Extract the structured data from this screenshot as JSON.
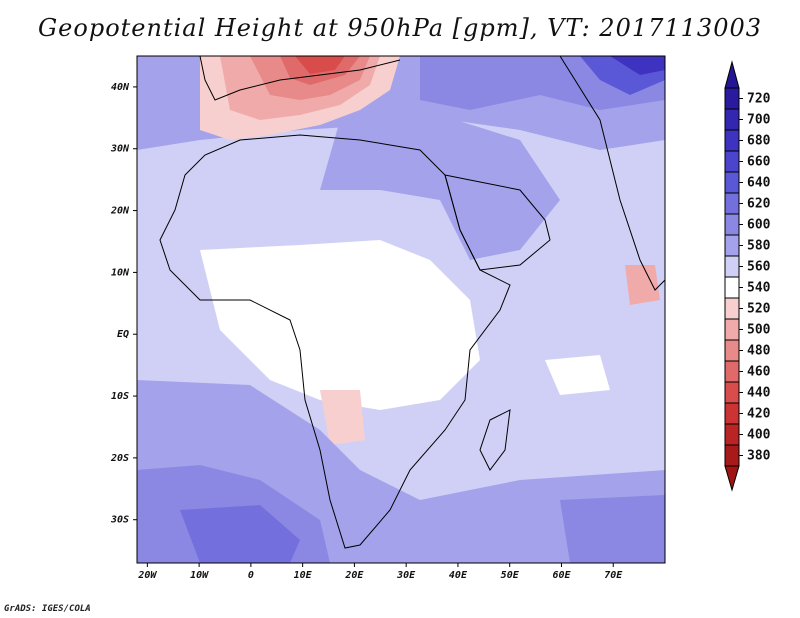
{
  "title": "Geopotential Height at 950hPa [gpm], VT: 2017113003",
  "credit": "GrADS: IGES/COLA",
  "map": {
    "variable": "Geopotential Height",
    "level": "950hPa",
    "units": "gpm",
    "valid_time": "2017113003",
    "lon_range": [
      -22,
      80
    ],
    "lat_range": [
      -37,
      45
    ],
    "x_ticks": [
      {
        "lon": -20,
        "label": "20W"
      },
      {
        "lon": -10,
        "label": "10W"
      },
      {
        "lon": 0,
        "label": "0"
      },
      {
        "lon": 10,
        "label": "10E"
      },
      {
        "lon": 20,
        "label": "20E"
      },
      {
        "lon": 30,
        "label": "30E"
      },
      {
        "lon": 40,
        "label": "40E"
      },
      {
        "lon": 50,
        "label": "50E"
      },
      {
        "lon": 60,
        "label": "60E"
      },
      {
        "lon": 70,
        "label": "70E"
      }
    ],
    "y_ticks": [
      {
        "lat": 40,
        "label": "40N"
      },
      {
        "lat": 30,
        "label": "30N"
      },
      {
        "lat": 20,
        "label": "20N"
      },
      {
        "lat": 10,
        "label": "10N"
      },
      {
        "lat": 0,
        "label": "EQ"
      },
      {
        "lat": -10,
        "label": "10S"
      },
      {
        "lat": -20,
        "label": "20S"
      },
      {
        "lat": -30,
        "label": "30S"
      }
    ]
  },
  "colorbar": {
    "levels": [
      {
        "value": 720,
        "label": "720",
        "color": "#2a1aa0"
      },
      {
        "value": 700,
        "label": "700",
        "color": "#3326b0"
      },
      {
        "value": 680,
        "label": "680",
        "color": "#3e33c0"
      },
      {
        "value": 660,
        "label": "660",
        "color": "#4a45cc"
      },
      {
        "value": 640,
        "label": "640",
        "color": "#5a58d6"
      },
      {
        "value": 620,
        "label": "620",
        "color": "#7370dd"
      },
      {
        "value": 600,
        "label": "600",
        "color": "#8a88e2"
      },
      {
        "value": 580,
        "label": "580",
        "color": "#a4a2ea"
      },
      {
        "value": 560,
        "label": "560",
        "color": "#d0d0f6"
      },
      {
        "value": 540,
        "label": "540",
        "color": "#ffffff"
      },
      {
        "value": 520,
        "label": "520",
        "color": "#f7cfcf"
      },
      {
        "value": 500,
        "label": "500",
        "color": "#f0aaaa"
      },
      {
        "value": 480,
        "label": "480",
        "color": "#e98a8a"
      },
      {
        "value": 460,
        "label": "460",
        "color": "#e06a6a"
      },
      {
        "value": 440,
        "label": "440",
        "color": "#d84c4c"
      },
      {
        "value": 420,
        "label": "420",
        "color": "#cc3333"
      },
      {
        "value": 400,
        "label": "400",
        "color": "#bb2424"
      },
      {
        "value": 380,
        "label": "380",
        "color": "#a81a1a"
      }
    ],
    "top_arrow_color": "#231593",
    "bottom_arrow_color": "#a01414"
  }
}
